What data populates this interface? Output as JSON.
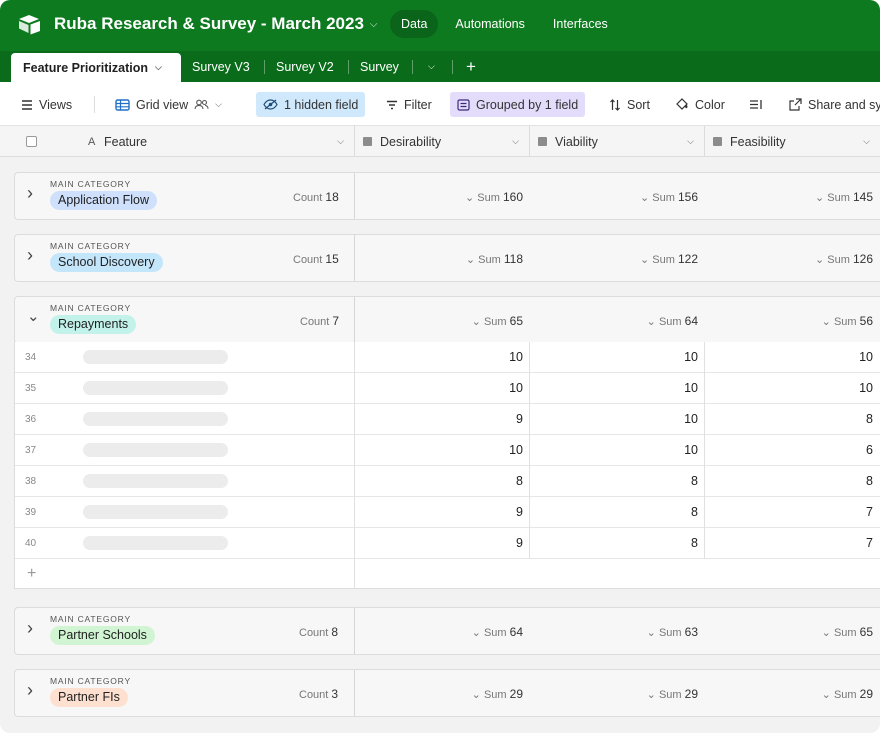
{
  "app": {
    "base_title": "Ruba Research & Survey - March 2023",
    "nav": [
      "Data",
      "Automations",
      "Interfaces"
    ]
  },
  "tabs": {
    "active": "Feature Prioritization",
    "others": [
      "Survey V3",
      "Survey V2",
      "Survey"
    ]
  },
  "toolbar": {
    "views": "Views",
    "grid_view": "Grid view",
    "hidden_field": "1 hidden field",
    "filter": "Filter",
    "grouped": "Grouped by 1 field",
    "sort": "Sort",
    "color": "Color",
    "share": "Share and sync"
  },
  "columns": {
    "feature": "Feature",
    "desirability": "Desirability",
    "viability": "Viability",
    "feasibility": "Feasibility"
  },
  "group_meta_label": "MAIN CATEGORY",
  "count_label": "Count",
  "sum_label": "Sum",
  "groups": [
    {
      "name": "Application Flow",
      "count": "18",
      "desirability": "160",
      "viability": "156",
      "feasibility": "145",
      "color": "#cfe0fc"
    },
    {
      "name": "School Discovery",
      "count": "15",
      "desirability": "118",
      "viability": "122",
      "feasibility": "126",
      "color": "#c4e6fb"
    },
    {
      "name": "Repayments",
      "count": "7",
      "desirability": "65",
      "viability": "64",
      "feasibility": "56",
      "color": "#c2f2ea"
    },
    {
      "name": "Partner Schools",
      "count": "8",
      "desirability": "64",
      "viability": "63",
      "feasibility": "65",
      "color": "#d1f5d3"
    },
    {
      "name": "Partner FIs",
      "count": "3",
      "desirability": "29",
      "viability": "29",
      "feasibility": "29",
      "color": "#fde0cf"
    }
  ],
  "rows": [
    {
      "n": "34",
      "d": "10",
      "v": "10",
      "f": "10"
    },
    {
      "n": "35",
      "d": "10",
      "v": "10",
      "f": "10"
    },
    {
      "n": "36",
      "d": "9",
      "v": "10",
      "f": "8"
    },
    {
      "n": "37",
      "d": "10",
      "v": "10",
      "f": "6"
    },
    {
      "n": "38",
      "d": "8",
      "v": "8",
      "f": "8"
    },
    {
      "n": "39",
      "d": "9",
      "v": "8",
      "f": "7"
    },
    {
      "n": "40",
      "d": "9",
      "v": "8",
      "f": "7"
    }
  ]
}
